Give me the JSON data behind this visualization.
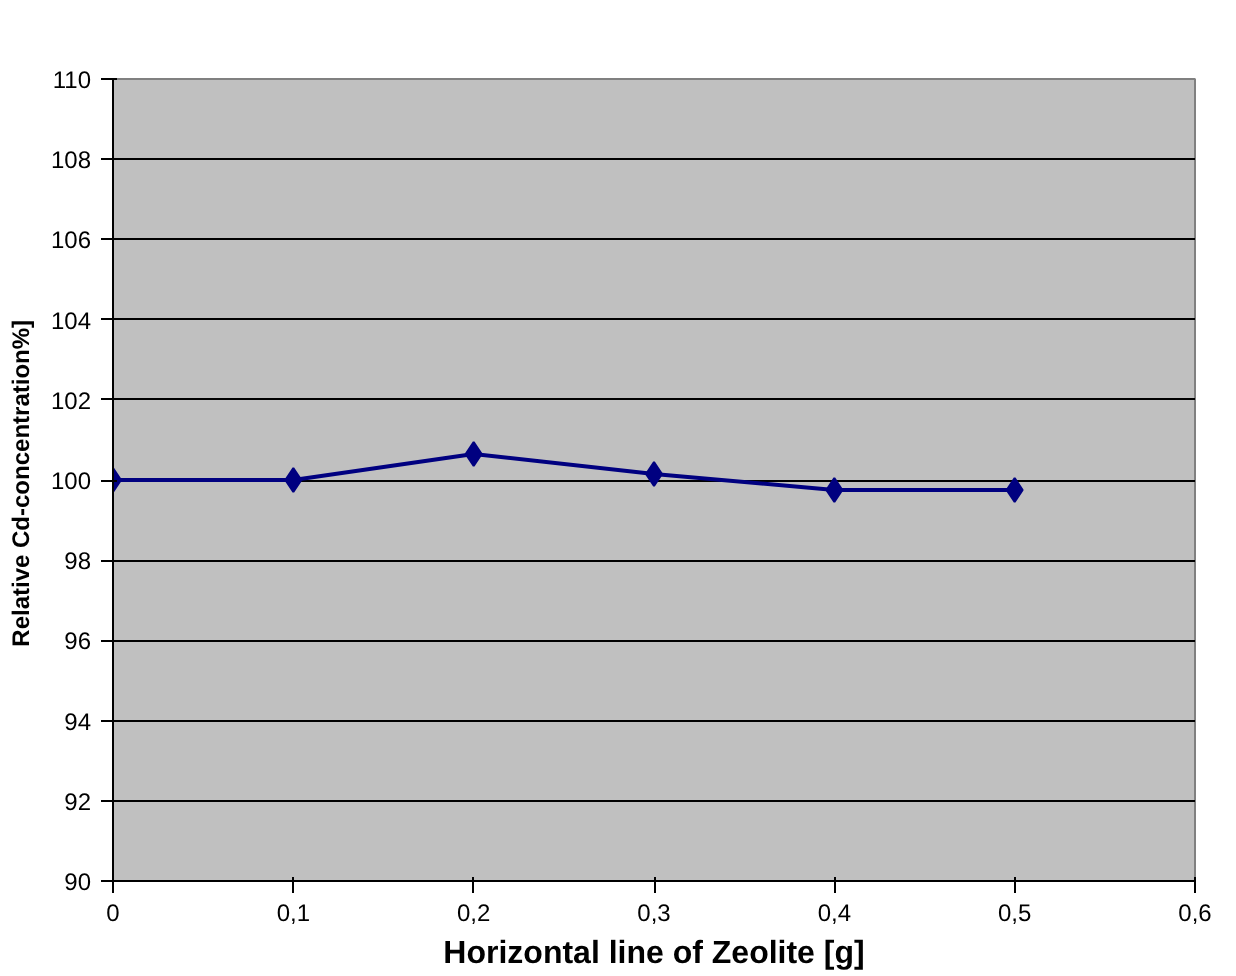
{
  "chart_data": {
    "type": "line",
    "xlabel": "Horizontal line of Zeolite [g]",
    "ylabel": "Relative  Cd-concentration%]",
    "x": [
      0,
      0.1,
      0.2,
      0.3,
      0.4,
      0.5
    ],
    "series": [
      {
        "color": "#000080",
        "values": [
          100,
          100,
          100.65,
          100.15,
          99.75,
          99.75
        ]
      }
    ],
    "xlim": [
      0,
      0.6
    ],
    "xticks": [
      0,
      {
        "value": 0.1,
        "label": "0,1"
      },
      {
        "value": 0.2,
        "label": "0,2"
      },
      {
        "value": 0.3,
        "label": "0,3"
      },
      {
        "value": 0.4,
        "label": "0,4"
      },
      {
        "value": 0.5,
        "label": "0,5"
      },
      {
        "value": 0.6,
        "label": "0,6"
      }
    ],
    "ylim": [
      90,
      110
    ],
    "yticks": [
      90,
      92,
      94,
      96,
      98,
      100,
      102,
      104,
      106,
      108,
      110
    ],
    "grid": "y",
    "marker": "diamond",
    "line_style": "solid"
  }
}
